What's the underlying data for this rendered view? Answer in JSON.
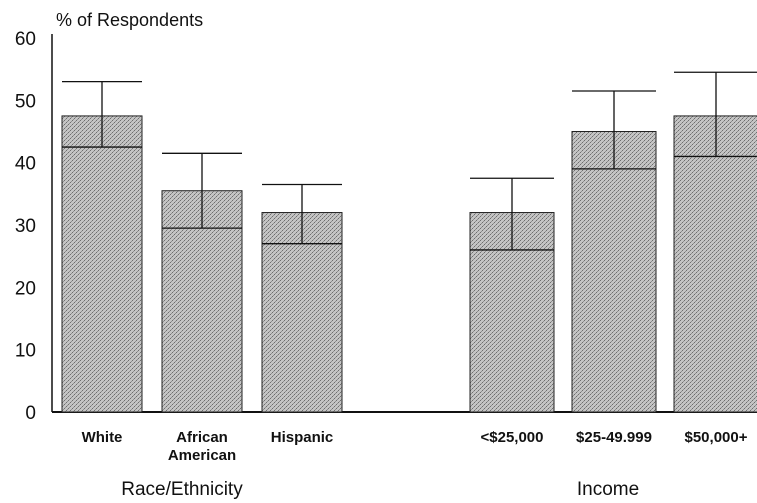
{
  "chart_data": {
    "type": "bar",
    "ylabel": "% of Respondents",
    "ylim": [
      0,
      60
    ],
    "yticks": [
      0,
      10,
      20,
      30,
      40,
      50,
      60
    ],
    "bar_fill": "#b3b3b3",
    "groups": [
      {
        "label": "Race/Ethnicity",
        "categories": [
          "White",
          "African American",
          "Hispanic"
        ],
        "values": [
          47.5,
          35.5,
          32
        ],
        "error_low": [
          42.5,
          29.5,
          27
        ],
        "error_high": [
          53,
          41.5,
          36.5
        ]
      },
      {
        "label": "Income",
        "categories": [
          "<$25,000",
          "$25-49.999",
          "$50,000+"
        ],
        "values": [
          32,
          45,
          47.5
        ],
        "error_low": [
          26,
          39,
          41
        ],
        "error_high": [
          37.5,
          51.5,
          54.5
        ]
      }
    ]
  }
}
